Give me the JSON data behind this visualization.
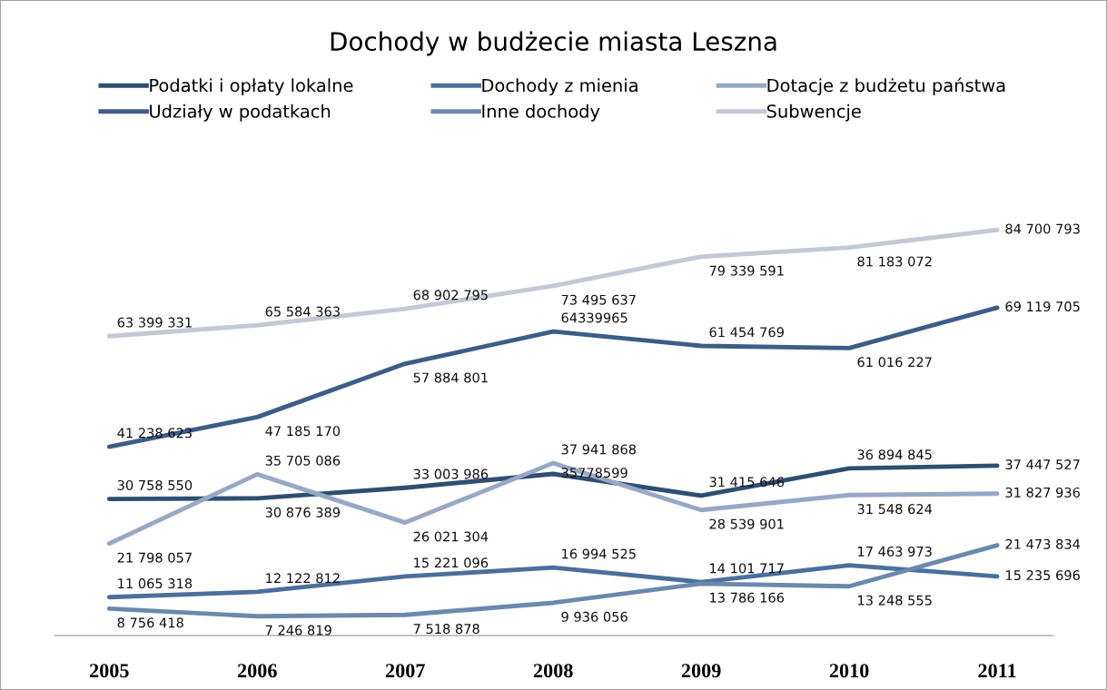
{
  "chart_data": {
    "type": "line",
    "title": "Dochody w budżecie miasta Leszna",
    "categories": [
      "2005",
      "2006",
      "2007",
      "2008",
      "2009",
      "2010",
      "2011"
    ],
    "series": [
      {
        "name": "Podatki i opłaty lokalne",
        "color": "#2f4e72",
        "values": [
          30758550,
          30876389,
          33003986,
          35778599,
          31415646,
          36894845,
          37447527
        ],
        "value_labels": [
          "30 758 550",
          "30 876 389",
          "33 003 986",
          "35778599",
          "31 415 646",
          "36 894 845",
          "37 447 527"
        ]
      },
      {
        "name": "Udziały w podatkach",
        "color": "#3c5d88",
        "values": [
          41238623,
          47185170,
          57884801,
          64339965,
          61454769,
          61016227,
          69119705
        ],
        "value_labels": [
          "41 238 623",
          "47 185 170",
          "57 884 801",
          "64339965",
          "61 454 769",
          "61 016 227",
          "69 119 705"
        ]
      },
      {
        "name": "Dochody z mienia",
        "color": "#4a6f9c",
        "values": [
          11065318,
          12122812,
          15221096,
          16994525,
          14101717,
          17463973,
          15235696
        ],
        "value_labels": [
          "11 065 318",
          "12 122 812",
          "15 221 096",
          "16 994 525",
          "14 101 717",
          "17 463 973",
          "15 235 696"
        ]
      },
      {
        "name": "Inne dochody",
        "color": "#6b88ad",
        "values": [
          8756418,
          7246819,
          7518878,
          9936056,
          13786166,
          13248555,
          21473834
        ],
        "value_labels": [
          "8 756 418",
          "7 246 819",
          "7 518 878",
          "9 936 056",
          "13 786 166",
          "13 248 555",
          "21 473 834"
        ]
      },
      {
        "name": "Dotacje z budżetu państwa",
        "color": "#97a8c6",
        "values": [
          21798057,
          35705086,
          26021304,
          37941868,
          28539901,
          31548624,
          31827936
        ],
        "value_labels": [
          "21 798 057",
          "35 705 086",
          "26 021 304",
          "37 941 868",
          "28 539 901",
          "31 548 624",
          "31 827 936"
        ]
      },
      {
        "name": "Subwencje",
        "color": "#c2c8d6",
        "values": [
          63399331,
          65584363,
          68902795,
          73495637,
          79339591,
          81183072,
          84700793
        ],
        "value_labels": [
          "63 399 331",
          "65 584 363",
          "68 902 795",
          "73 495 637",
          "79 339 591",
          "81 183 072",
          "84 700 793"
        ]
      }
    ],
    "tick_labels": "x",
    "grid": false,
    "legend": "top",
    "marker": "none",
    "line_style": "solid"
  }
}
